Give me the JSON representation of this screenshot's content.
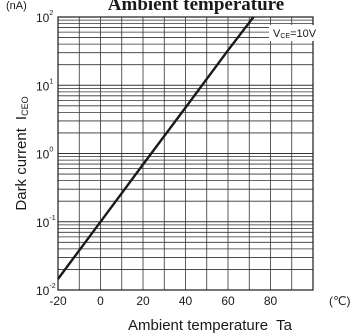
{
  "chart_data": {
    "type": "line",
    "title": "Ambient temperature",
    "unit_label": "(nA)",
    "xlabel": "Ambient temperature",
    "xlabel_symbol": "Ta",
    "ylabel": "Dark current",
    "ylabel_symbol_main": "I",
    "ylabel_symbol_sub": "CEO",
    "x_unit": "(℃)",
    "xlim": [
      -20,
      100
    ],
    "ylim": [
      0.01,
      100
    ],
    "yscale": "log",
    "grid": true,
    "x_ticks": [
      {
        "value": -20,
        "label": "-20"
      },
      {
        "value": 0,
        "label": "0"
      },
      {
        "value": 20,
        "label": "20"
      },
      {
        "value": 40,
        "label": "40"
      },
      {
        "value": 60,
        "label": "60"
      },
      {
        "value": 80,
        "label": "80"
      }
    ],
    "y_ticks": [
      {
        "value": 100,
        "base": "10",
        "exp": "2"
      },
      {
        "value": 10,
        "base": "10",
        "exp": "1"
      },
      {
        "value": 1,
        "base": "10",
        "exp": "0"
      },
      {
        "value": 0.1,
        "base": "10",
        "exp": "-1"
      },
      {
        "value": 0.01,
        "base": "10",
        "exp": "-2"
      }
    ],
    "annotation": {
      "prefix": "V",
      "sub": "CE",
      "suffix": "=10V"
    },
    "series": [
      {
        "x": [
          -20,
          0,
          20,
          40,
          60,
          72
        ],
        "y": [
          0.0145,
          0.1,
          0.69,
          4.7,
          32.5,
          100
        ]
      }
    ]
  }
}
